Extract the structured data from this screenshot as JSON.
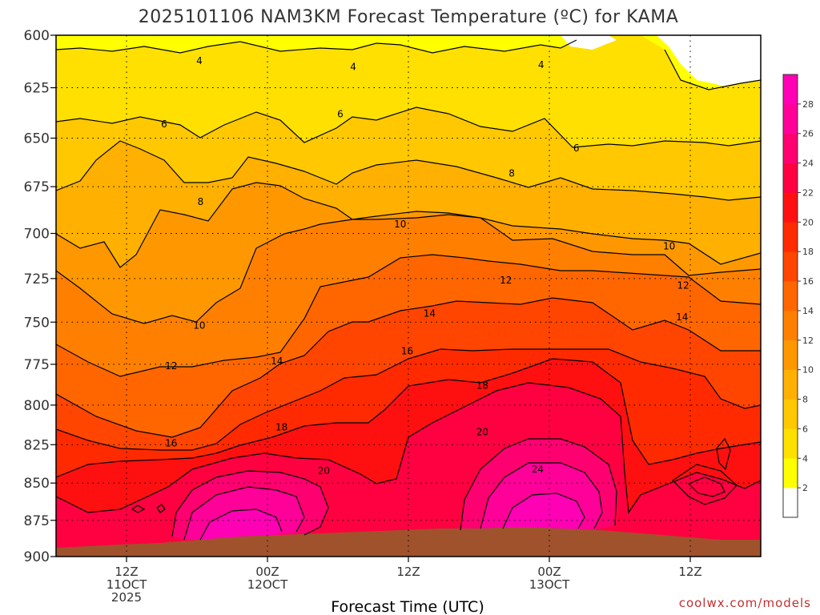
{
  "chart_data": {
    "type": "heatmap",
    "title": "2025101106 NAM3KM Forecast Temperature (ºC) for KAMA",
    "xlabel": "Forecast Time (UTC)",
    "ylabel": "",
    "x_ticks": [
      {
        "hour": 6,
        "lines": [
          "12Z",
          "11OCT",
          "2025"
        ]
      },
      {
        "hour": 18,
        "lines": [
          "00Z",
          "12OCT"
        ]
      },
      {
        "hour": 30,
        "lines": [
          "12Z"
        ]
      },
      {
        "hour": 42,
        "lines": [
          "00Z",
          "13OCT"
        ]
      },
      {
        "hour": 54,
        "lines": [
          "12Z"
        ]
      }
    ],
    "xlim_hours": [
      0,
      60
    ],
    "y_ticks": [
      "600",
      "625",
      "650",
      "675",
      "700",
      "725",
      "750",
      "775",
      "800",
      "825",
      "850",
      "875",
      "900"
    ],
    "ylim": [
      900,
      600
    ],
    "y_scale": "log-pressure",
    "grid": "dotted",
    "colorbar": {
      "placement": "right",
      "ticks": [
        "2",
        "4",
        "6",
        "8",
        "10",
        "12",
        "14",
        "16",
        "18",
        "20",
        "22",
        "24",
        "26",
        "28"
      ],
      "colors": [
        "#ffffff",
        "#ffff00",
        "#ffe000",
        "#ffc800",
        "#ffb000",
        "#ff9800",
        "#ff8000",
        "#ff6600",
        "#ff4500",
        "#ff2a00",
        "#ff1010",
        "#ff0040",
        "#ff0070",
        "#ff0099",
        "#ff00b4"
      ]
    },
    "surface_color": "#a0522d",
    "contour_labels": [
      {
        "label": "4",
        "hour": 12.2,
        "pres": 612
      },
      {
        "label": "4",
        "hour": 25.3,
        "pres": 615
      },
      {
        "label": "4",
        "hour": 41.3,
        "pres": 614
      },
      {
        "label": "6",
        "hour": 9.2,
        "pres": 643
      },
      {
        "label": "6",
        "hour": 24.2,
        "pres": 638
      },
      {
        "label": "6",
        "hour": 44.3,
        "pres": 655
      },
      {
        "label": "8",
        "hour": 12.3,
        "pres": 683
      },
      {
        "label": "8",
        "hour": 38.8,
        "pres": 668
      },
      {
        "label": "10",
        "hour": 29.3,
        "pres": 695
      },
      {
        "label": "10",
        "hour": 52.2,
        "pres": 707
      },
      {
        "label": "10",
        "hour": 12.2,
        "pres": 752
      },
      {
        "label": "12",
        "hour": 38.3,
        "pres": 726
      },
      {
        "label": "12",
        "hour": 53.4,
        "pres": 729
      },
      {
        "label": "12",
        "hour": 9.8,
        "pres": 776
      },
      {
        "label": "14",
        "hour": 31.8,
        "pres": 745
      },
      {
        "label": "14",
        "hour": 53.3,
        "pres": 747
      },
      {
        "label": "14",
        "hour": 18.8,
        "pres": 773
      },
      {
        "label": "16",
        "hour": 29.9,
        "pres": 767
      },
      {
        "label": "16",
        "hour": 9.8,
        "pres": 824
      },
      {
        "label": "18",
        "hour": 36.3,
        "pres": 788
      },
      {
        "label": "18",
        "hour": 19.2,
        "pres": 814
      },
      {
        "label": "20",
        "hour": 36.3,
        "pres": 817
      },
      {
        "label": "20",
        "hour": 22.8,
        "pres": 842
      },
      {
        "label": "24",
        "hour": 41.0,
        "pres": 841
      }
    ]
  },
  "credit": "coolwx.com/models"
}
